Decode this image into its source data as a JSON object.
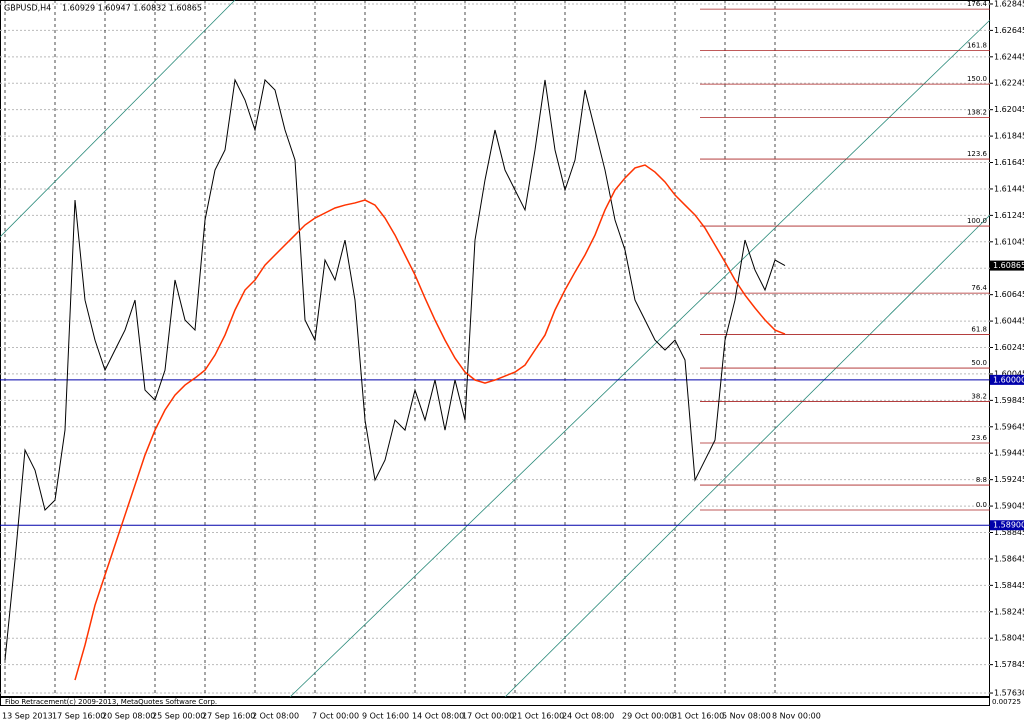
{
  "chart_data": {
    "type": "line",
    "title": "GBPUSD,H4",
    "subtitle": "1.60929 1.60947 1.60832 1.60865",
    "footer": "Fibo Retracement(c) 2009-2013, MetaQuotes Software Corp.",
    "indicator_value": "0.00725",
    "categories": [
      "13 Sep 2013",
      null,
      null,
      null,
      null,
      "17 Sep 16:00",
      null,
      null,
      null,
      null,
      "20 Sep 08:00",
      null,
      null,
      null,
      null,
      "25 Sep 00:00",
      null,
      null,
      null,
      null,
      "27 Sep 16:00",
      null,
      null,
      null,
      null,
      "2 Oct 08:00",
      null,
      null,
      null,
      null,
      null,
      "7 Oct 00:00",
      null,
      null,
      null,
      null,
      "9 Oct 16:00",
      null,
      null,
      null,
      null,
      "14 Oct 08:00",
      null,
      null,
      null,
      null,
      "17 Oct 00:00",
      null,
      null,
      null,
      null,
      "21 Oct 16:00",
      null,
      null,
      null,
      null,
      "24 Oct 08:00",
      null,
      null,
      null,
      null,
      null,
      "29 Oct 00:00",
      null,
      null,
      null,
      null,
      "31 Oct 16:00",
      null,
      null,
      null,
      null,
      "5 Nov 08:00",
      null,
      null,
      null,
      null,
      "8 Nov 00:00",
      null
    ],
    "series": [
      {
        "name": "GBPUSD",
        "color": "#000000",
        "values": [
          1.57879,
          1.58636,
          1.59469,
          1.59317,
          1.59015,
          1.5909,
          1.5962,
          1.61361,
          1.60604,
          1.60301,
          1.60074,
          1.60226,
          1.60377,
          1.60604,
          1.59923,
          1.59847,
          1.60074,
          1.60756,
          1.60453,
          1.60377,
          1.6121,
          1.61588,
          1.6174,
          1.6227,
          1.62118,
          1.61891,
          1.6227,
          1.62194,
          1.61891,
          1.61664,
          1.60453,
          1.60301,
          1.60907,
          1.60756,
          1.61058,
          1.60604,
          1.59696,
          1.59242,
          1.59393,
          1.59696,
          1.5962,
          1.59923,
          1.59696,
          1.59999,
          1.5962,
          1.59999,
          1.59696,
          1.61058,
          1.61513,
          1.61891,
          1.61588,
          1.61437,
          1.61286,
          1.6174,
          1.6227,
          1.6174,
          1.61437,
          1.61664,
          1.62194,
          1.61891,
          1.61588,
          1.6121,
          1.60983,
          1.60604,
          1.60453,
          1.60301,
          1.60226,
          1.60301,
          1.6015,
          1.59242,
          1.59393,
          1.59544,
          1.60301,
          1.60604,
          1.61058,
          1.60831,
          1.6068,
          1.60907,
          1.60865
        ]
      },
      {
        "name": "MA",
        "color": "#ff3300",
        "values": [
          null,
          null,
          null,
          null,
          null,
          null,
          null,
          1.57728,
          1.57993,
          1.58295,
          1.58523,
          1.5875,
          1.58977,
          1.59204,
          1.59431,
          1.5962,
          1.59772,
          1.59885,
          1.59961,
          1.60014,
          1.60074,
          1.60188,
          1.60339,
          1.60529,
          1.6068,
          1.60756,
          1.60869,
          1.60945,
          1.61021,
          1.61096,
          1.61172,
          1.61225,
          1.61263,
          1.61301,
          1.61323,
          1.61339,
          1.61361,
          1.61323,
          1.61225,
          1.61096,
          1.60945,
          1.60794,
          1.60619,
          1.60453,
          1.60301,
          1.60165,
          1.60059,
          1.59999,
          1.59976,
          1.59999,
          1.60029,
          1.60059,
          1.60112,
          1.60226,
          1.60339,
          1.60529,
          1.6068,
          1.60816,
          1.60945,
          1.61096,
          1.61286,
          1.61437,
          1.61528,
          1.61604,
          1.61626,
          1.61573,
          1.61498,
          1.61399,
          1.61323,
          1.61248,
          1.61149,
          1.61021,
          1.60892,
          1.60756,
          1.60642,
          1.60544,
          1.60453,
          1.60377,
          1.60347
        ]
      }
    ],
    "ylim": [
      1.576,
      1.62875
    ],
    "yticks": [
      {
        "value": 1.5763,
        "label": "1.57630"
      },
      1.57845,
      1.58045,
      1.58245,
      1.58445,
      1.58645,
      1.58845,
      1.59045,
      1.59245,
      1.59445,
      1.59645,
      1.59845,
      1.60045,
      1.60245,
      1.60445,
      1.60645,
      1.60845,
      1.61045,
      1.61245,
      1.61445,
      1.61645,
      1.61845,
      1.62045,
      1.62245,
      1.62445,
      1.62645,
      1.62845
    ],
    "grid": true,
    "hlines": [
      {
        "value": 1.6,
        "label": "1.60000",
        "color": "#0000aa"
      },
      {
        "value": 1.589,
        "label": "1.58900",
        "color": "#0000aa"
      }
    ],
    "fibonacci": {
      "from": 1.59015,
      "to": 1.61164,
      "color": "#aa2222",
      "levels": [
        {
          "value": 0,
          "label": "0.0"
        },
        {
          "value": 8.8,
          "label": "8.8"
        },
        {
          "value": 23.6,
          "label": "23.6"
        },
        {
          "value": 38.2,
          "label": "38.2"
        },
        {
          "value": 50,
          "label": "50.0"
        },
        {
          "value": 61.8,
          "label": "61.8"
        },
        {
          "value": 76.4,
          "label": "76.4"
        },
        {
          "value": 100,
          "label": "100.0"
        },
        {
          "value": 123.6,
          "label": "123.6"
        },
        {
          "value": 138.2,
          "label": "138.2"
        },
        {
          "value": 150,
          "label": "150.0"
        },
        {
          "value": 161.8,
          "label": "161.8"
        },
        {
          "value": 176.4,
          "label": "176.4"
        }
      ]
    }
  }
}
